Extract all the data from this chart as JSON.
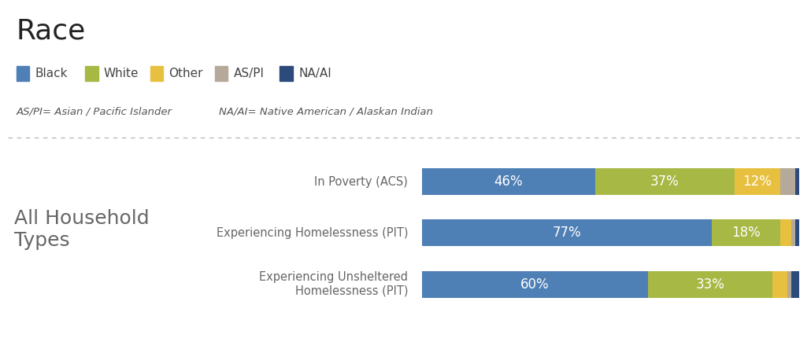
{
  "title": "Race",
  "legend_items": [
    "Black",
    "White",
    "Other",
    "AS/PI",
    "NA/AI"
  ],
  "legend_colors": [
    "#4e7fb5",
    "#a8b845",
    "#e8c040",
    "#b5a99a",
    "#2c4a7a"
  ],
  "footnote1": "AS/PI= Asian / Pacific Islander",
  "footnote2": "NA/AI= Native American / Alaskan Indian",
  "section_label": "All Household\nTypes",
  "categories": [
    "In Poverty (ACS)",
    "Experiencing Homelessness (PIT)",
    "Experiencing Unsheltered\nHomelessness (PIT)"
  ],
  "data": [
    [
      46,
      37,
      12,
      4,
      1
    ],
    [
      77,
      18,
      3,
      1,
      1
    ],
    [
      60,
      33,
      4,
      1,
      2
    ]
  ],
  "bar_colors": [
    "#4e7fb5",
    "#a8b845",
    "#e8c040",
    "#b5a99a",
    "#2c4a7a"
  ],
  "label_threshold": 8,
  "background_color": "#ffffff",
  "bar_height": 0.52,
  "figsize": [
    10.3,
    4.44
  ],
  "dpi": 100,
  "title_fontsize": 26,
  "legend_fontsize": 11,
  "footnote_fontsize": 9.5,
  "category_fontsize": 10.5,
  "section_fontsize": 18,
  "bar_label_fontsize": 12
}
